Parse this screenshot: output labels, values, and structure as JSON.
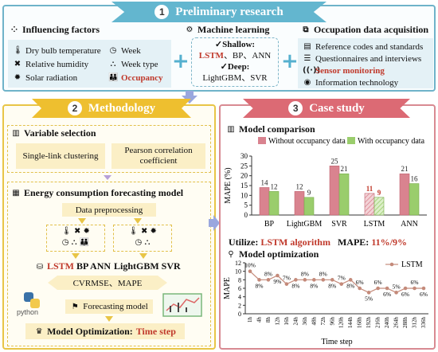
{
  "banners": {
    "top": {
      "num": "1",
      "title": "Preliminary research"
    },
    "method": {
      "num": "2",
      "title": "Methodology"
    },
    "case": {
      "num": "3",
      "title": "Case study"
    }
  },
  "influencing": {
    "title": "Influencing factors",
    "left": [
      "Dry bulb temperature",
      "Relative humidity",
      "Solar radiation"
    ],
    "right": [
      "Week",
      "Week type",
      "Occupancy"
    ]
  },
  "ml": {
    "title": "Machine learning",
    "shallow_label": "✓Shallow:",
    "shallow_lstm": "LSTM",
    "shallow_rest": "、BP、ANN",
    "deep_label": "✓Deep:",
    "deep_models": "LightGBM、SVR"
  },
  "occ": {
    "title": "Occupation data acquisition",
    "items": [
      "Reference codes and standards",
      "Questionnaires and interviews",
      "Sensor monitoring",
      "Information technology"
    ]
  },
  "variable": {
    "title": "Variable selection",
    "box1": "Single-link clustering",
    "box2": "Pearson correlation coefficient"
  },
  "energy": {
    "title": "Energy consumption forecasting model",
    "preprocess": "Data preprocessing",
    "models_left": [
      "LSTM",
      "BP",
      "ANN"
    ],
    "models_right": [
      "LightGBM",
      "SVR"
    ],
    "metrics": "CVRMSE、MAPE",
    "python": "python",
    "forecast": "Forecasting model",
    "opt_prefix": "Model Optimization: ",
    "opt_value": "Time step"
  },
  "comparison": {
    "title": "Model comparison",
    "utilize_prefix": "Utilize: ",
    "utilize_value": "LSTM algorithm",
    "mape_prefix": "MAPE: ",
    "mape_value": "11%/9%"
  },
  "optimization": {
    "title": "Model optimization"
  },
  "colors": {
    "without": "#d9838f",
    "with": "#9acd6c",
    "lstm_line": "#c48a7a"
  },
  "chart_data": [
    {
      "type": "bar",
      "categories": [
        "BP",
        "LightGBM",
        "SVR",
        "LSTM",
        "ANN"
      ],
      "series": [
        {
          "name": "Without occupancy data",
          "values": [
            14,
            12,
            25,
            11,
            21
          ]
        },
        {
          "name": "With occupancy data",
          "values": [
            12,
            9,
            21,
            9,
            16
          ]
        }
      ],
      "ylabel": "MAPE (%)",
      "ylim": [
        0,
        30
      ],
      "yticks": [
        0,
        5,
        10,
        15,
        20,
        25,
        30
      ],
      "highlight_category": "LSTM",
      "legend": "top"
    },
    {
      "type": "line",
      "categories": [
        "1h",
        "4h",
        "8h",
        "12h",
        "16h",
        "24h",
        "36h",
        "48h",
        "72h",
        "96h",
        "120h",
        "144h",
        "168h",
        "192h",
        "216h",
        "240h",
        "264h",
        "288h",
        "312h",
        "336h"
      ],
      "series": [
        {
          "name": "LSTM",
          "values": [
            10,
            8,
            8,
            9,
            7,
            8,
            8,
            8,
            8,
            8,
            7,
            8,
            6,
            5,
            6,
            6,
            5,
            6,
            6,
            6
          ]
        }
      ],
      "point_labels": [
        "10%",
        "8%",
        "8%",
        "9%",
        "7%",
        "8%",
        "8%",
        "8%",
        "8%",
        "8%",
        "7%",
        "8%",
        "6%",
        "5%",
        "6%",
        "6%",
        "5%",
        "6%",
        "6%",
        "6%"
      ],
      "xlabel": "Time step",
      "ylabel": "MAPE",
      "ylim": [
        0,
        12
      ],
      "yticks": [
        0,
        2,
        4,
        6,
        8,
        10,
        12
      ],
      "legend": "top-right"
    }
  ]
}
